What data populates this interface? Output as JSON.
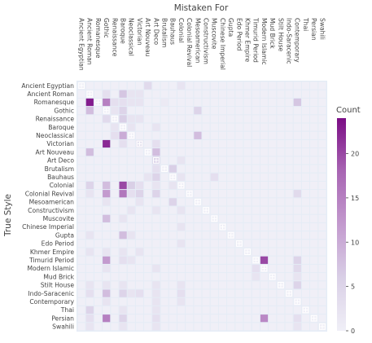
{
  "chart_data": {
    "type": "heatmap",
    "title": "",
    "xlabel": "Mistaken For",
    "ylabel": "True Style",
    "colorbar": {
      "title": "Count",
      "ticks": [
        0,
        5,
        10,
        15,
        20
      ],
      "zmin": 0,
      "zmax": 24
    },
    "colors": {
      "low": "#eceaf5",
      "high": "#7b0d85",
      "plot_bg": "#e5ecf6",
      "grid": "#ffffff"
    },
    "diagonal_marker": "+",
    "categories": [
      "Ancient Egyptian",
      "Ancient Roman",
      "Romanesque",
      "Gothic",
      "Renaissance",
      "Baroque",
      "Neoclassical",
      "Victorian",
      "Art Nouveau",
      "Art Deco",
      "Brutalism",
      "Bauhaus",
      "Colonial",
      "Colonial Revival",
      "Mesoamerican",
      "Constructivism",
      "Muscovite",
      "Chinese Imperial",
      "Gupta",
      "Edo Period",
      "Khmer Empire",
      "Timurid Period",
      "Modern Islamic",
      "Mud Brick",
      "Stilt House",
      "Indo-Saracenic",
      "Contemporary",
      "Thai",
      "Persian",
      "Swahili"
    ],
    "cells": [
      {
        "r": 0,
        "c": 8,
        "v": 4
      },
      {
        "r": 0,
        "c": 12,
        "v": 2
      },
      {
        "r": 1,
        "c": 3,
        "v": 3
      },
      {
        "r": 1,
        "c": 5,
        "v": 7
      },
      {
        "r": 1,
        "c": 6,
        "v": 2
      },
      {
        "r": 1,
        "c": 7,
        "v": 2
      },
      {
        "r": 2,
        "c": 1,
        "v": 23
      },
      {
        "r": 2,
        "c": 3,
        "v": 15
      },
      {
        "r": 2,
        "c": 4,
        "v": 3
      },
      {
        "r": 2,
        "c": 5,
        "v": 3
      },
      {
        "r": 2,
        "c": 6,
        "v": 2
      },
      {
        "r": 2,
        "c": 7,
        "v": 2
      },
      {
        "r": 2,
        "c": 10,
        "v": 1
      },
      {
        "r": 2,
        "c": 26,
        "v": 7
      },
      {
        "r": 3,
        "c": 1,
        "v": 8
      },
      {
        "r": 3,
        "c": 4,
        "v": 2
      },
      {
        "r": 3,
        "c": 5,
        "v": 5
      },
      {
        "r": 3,
        "c": 14,
        "v": 5
      },
      {
        "r": 4,
        "c": 3,
        "v": 4
      },
      {
        "r": 4,
        "c": 5,
        "v": 6
      },
      {
        "r": 4,
        "c": 6,
        "v": 2
      },
      {
        "r": 4,
        "c": 7,
        "v": 2
      },
      {
        "r": 5,
        "c": 4,
        "v": 2
      },
      {
        "r": 5,
        "c": 6,
        "v": 2
      },
      {
        "r": 5,
        "c": 9,
        "v": 2
      },
      {
        "r": 6,
        "c": 4,
        "v": 3
      },
      {
        "r": 6,
        "c": 5,
        "v": 10
      },
      {
        "r": 6,
        "c": 14,
        "v": 8
      },
      {
        "r": 7,
        "c": 3,
        "v": 22
      },
      {
        "r": 7,
        "c": 5,
        "v": 3
      },
      {
        "r": 7,
        "c": 7,
        "v": 2
      },
      {
        "r": 7,
        "c": 9,
        "v": 3
      },
      {
        "r": 8,
        "c": 1,
        "v": 8
      },
      {
        "r": 8,
        "c": 9,
        "v": 8
      },
      {
        "r": 9,
        "c": 9,
        "v": 5
      },
      {
        "r": 9,
        "c": 12,
        "v": 2
      },
      {
        "r": 10,
        "c": 9,
        "v": 3
      },
      {
        "r": 10,
        "c": 11,
        "v": 6
      },
      {
        "r": 11,
        "c": 8,
        "v": 2
      },
      {
        "r": 11,
        "c": 9,
        "v": 5
      },
      {
        "r": 11,
        "c": 12,
        "v": 2
      },
      {
        "r": 11,
        "c": 16,
        "v": 3
      },
      {
        "r": 12,
        "c": 1,
        "v": 5
      },
      {
        "r": 12,
        "c": 3,
        "v": 8
      },
      {
        "r": 12,
        "c": 5,
        "v": 20
      },
      {
        "r": 12,
        "c": 6,
        "v": 6
      },
      {
        "r": 12,
        "c": 7,
        "v": 3
      },
      {
        "r": 12,
        "c": 9,
        "v": 2
      },
      {
        "r": 12,
        "c": 11,
        "v": 2
      },
      {
        "r": 13,
        "c": 1,
        "v": 2
      },
      {
        "r": 13,
        "c": 3,
        "v": 12
      },
      {
        "r": 13,
        "c": 5,
        "v": 16
      },
      {
        "r": 13,
        "c": 6,
        "v": 3
      },
      {
        "r": 13,
        "c": 7,
        "v": 5
      },
      {
        "r": 13,
        "c": 9,
        "v": 5
      },
      {
        "r": 13,
        "c": 26,
        "v": 4
      },
      {
        "r": 14,
        "c": 3,
        "v": 2
      },
      {
        "r": 14,
        "c": 7,
        "v": 2
      },
      {
        "r": 14,
        "c": 11,
        "v": 5
      },
      {
        "r": 15,
        "c": 6,
        "v": 2
      },
      {
        "r": 15,
        "c": 9,
        "v": 2
      },
      {
        "r": 15,
        "c": 12,
        "v": 2
      },
      {
        "r": 16,
        "c": 3,
        "v": 8
      },
      {
        "r": 16,
        "c": 5,
        "v": 2
      },
      {
        "r": 17,
        "c": 12,
        "v": 2
      },
      {
        "r": 18,
        "c": 1,
        "v": 2
      },
      {
        "r": 18,
        "c": 5,
        "v": 8
      },
      {
        "r": 18,
        "c": 6,
        "v": 2
      },
      {
        "r": 19,
        "c": 12,
        "v": 2
      },
      {
        "r": 20,
        "c": 1,
        "v": 2
      },
      {
        "r": 20,
        "c": 3,
        "v": 2
      },
      {
        "r": 20,
        "c": 5,
        "v": 2
      },
      {
        "r": 20,
        "c": 7,
        "v": 2
      },
      {
        "r": 21,
        "c": 3,
        "v": 12
      },
      {
        "r": 21,
        "c": 5,
        "v": 3
      },
      {
        "r": 21,
        "c": 6,
        "v": 2
      },
      {
        "r": 21,
        "c": 22,
        "v": 20
      },
      {
        "r": 21,
        "c": 26,
        "v": 5
      },
      {
        "r": 22,
        "c": 3,
        "v": 2
      },
      {
        "r": 22,
        "c": 9,
        "v": 2
      },
      {
        "r": 22,
        "c": 21,
        "v": 3
      },
      {
        "r": 22,
        "c": 26,
        "v": 4
      },
      {
        "r": 23,
        "c": 21,
        "v": 2
      },
      {
        "r": 23,
        "c": 26,
        "v": 2
      },
      {
        "r": 24,
        "c": 1,
        "v": 2
      },
      {
        "r": 24,
        "c": 3,
        "v": 2
      },
      {
        "r": 24,
        "c": 5,
        "v": 2
      },
      {
        "r": 24,
        "c": 9,
        "v": 2
      },
      {
        "r": 24,
        "c": 12,
        "v": 2
      },
      {
        "r": 24,
        "c": 26,
        "v": 5
      },
      {
        "r": 25,
        "c": 1,
        "v": 3
      },
      {
        "r": 25,
        "c": 3,
        "v": 8
      },
      {
        "r": 25,
        "c": 5,
        "v": 5
      },
      {
        "r": 25,
        "c": 6,
        "v": 2
      },
      {
        "r": 25,
        "c": 7,
        "v": 3
      },
      {
        "r": 25,
        "c": 9,
        "v": 2
      },
      {
        "r": 25,
        "c": 12,
        "v": 3
      },
      {
        "r": 26,
        "c": 3,
        "v": 2
      },
      {
        "r": 26,
        "c": 9,
        "v": 2
      },
      {
        "r": 26,
        "c": 12,
        "v": 2
      },
      {
        "r": 27,
        "c": 1,
        "v": 5
      },
      {
        "r": 27,
        "c": 5,
        "v": 2
      },
      {
        "r": 27,
        "c": 9,
        "v": 2
      },
      {
        "r": 28,
        "c": 1,
        "v": 3
      },
      {
        "r": 28,
        "c": 3,
        "v": 15
      },
      {
        "r": 28,
        "c": 5,
        "v": 5
      },
      {
        "r": 28,
        "c": 9,
        "v": 3
      },
      {
        "r": 28,
        "c": 22,
        "v": 14
      },
      {
        "r": 28,
        "c": 26,
        "v": 3
      },
      {
        "r": 29,
        "c": 1,
        "v": 2
      },
      {
        "r": 29,
        "c": 5,
        "v": 2
      },
      {
        "r": 29,
        "c": 9,
        "v": 2
      },
      {
        "r": 29,
        "c": 26,
        "v": 2
      }
    ]
  }
}
